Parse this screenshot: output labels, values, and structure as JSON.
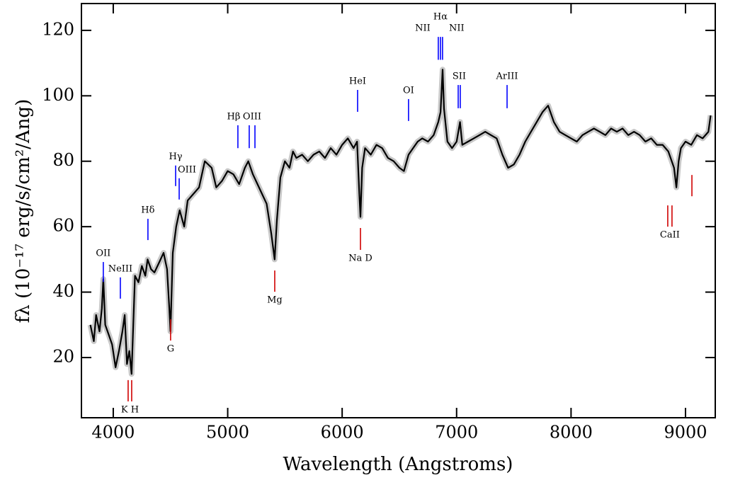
{
  "chart_data": {
    "type": "line",
    "xlabel": "Wavelength (Angstroms)",
    "ylabel": "fλ (10⁻¹⁷ erg/s/cm²/Ang)",
    "color": "#000000",
    "band_color": "#c8c8c8",
    "xlim": [
      3722,
      9260
    ],
    "ylim": [
      1.6,
      128.2
    ],
    "xticks": [
      4000,
      5000,
      6000,
      7000,
      8000,
      9000
    ],
    "yticks": [
      20,
      40,
      60,
      80,
      100,
      120
    ],
    "x": [
      3800,
      3830,
      3850,
      3880,
      3900,
      3913,
      3930,
      3960,
      3990,
      4020,
      4050,
      4080,
      4100,
      4120,
      4140,
      4160,
      4175,
      4190,
      4220,
      4250,
      4280,
      4300,
      4330,
      4360,
      4400,
      4440,
      4470,
      4490,
      4500,
      4520,
      4550,
      4580,
      4620,
      4650,
      4700,
      4750,
      4800,
      4860,
      4900,
      4950,
      5000,
      5050,
      5100,
      5150,
      5180,
      5220,
      5260,
      5300,
      5340,
      5380,
      5410,
      5430,
      5460,
      5500,
      5540,
      5570,
      5600,
      5650,
      5700,
      5750,
      5800,
      5850,
      5900,
      5950,
      6000,
      6050,
      6100,
      6130,
      6150,
      6160,
      6175,
      6200,
      6250,
      6300,
      6350,
      6400,
      6450,
      6500,
      6540,
      6580,
      6620,
      6660,
      6700,
      6750,
      6800,
      6840,
      6860,
      6878,
      6890,
      6920,
      6960,
      7000,
      7030,
      7050,
      7100,
      7150,
      7200,
      7250,
      7300,
      7350,
      7400,
      7450,
      7500,
      7550,
      7600,
      7650,
      7700,
      7750,
      7800,
      7850,
      7900,
      7950,
      8000,
      8050,
      8100,
      8150,
      8200,
      8250,
      8300,
      8350,
      8400,
      8450,
      8500,
      8550,
      8600,
      8650,
      8700,
      8750,
      8800,
      8850,
      8900,
      8920,
      8940,
      8960,
      9000,
      9050,
      9100,
      9150,
      9200,
      9220
    ],
    "values": [
      30,
      25,
      33,
      28,
      35,
      44,
      30,
      27,
      24,
      17,
      22,
      28,
      33,
      18,
      22,
      15,
      30,
      45,
      43,
      48,
      45,
      50,
      47,
      46,
      49,
      52,
      47,
      35,
      28,
      52,
      60,
      65,
      60,
      68,
      70,
      72,
      80,
      78,
      72,
      74,
      77,
      76,
      73,
      78,
      80,
      76,
      73,
      70,
      67,
      58,
      50,
      62,
      75,
      80,
      78,
      83,
      81,
      82,
      80,
      82,
      83,
      81,
      84,
      82,
      85,
      87,
      84,
      86,
      70,
      63,
      78,
      84,
      82,
      85,
      84,
      81,
      80,
      78,
      77,
      82,
      84,
      86,
      87,
      86,
      88,
      92,
      95,
      108,
      96,
      86,
      84,
      86,
      92,
      85,
      86,
      87,
      88,
      89,
      88,
      87,
      82,
      78,
      79,
      82,
      86,
      89,
      92,
      95,
      97,
      92,
      89,
      88,
      87,
      86,
      88,
      89,
      90,
      89,
      88,
      90,
      89,
      90,
      88,
      89,
      88,
      86,
      87,
      85,
      85,
      83,
      78,
      72,
      80,
      84,
      86,
      85,
      88,
      87,
      89,
      94
    ],
    "annotations": [
      {
        "label": "OII",
        "x": [
          3913
        ],
        "y": [
          49.2,
          43.1
        ],
        "color": "#0000ff"
      },
      {
        "label": "NeIII",
        "x": [
          4062
        ],
        "y": [
          44.5,
          38.0
        ],
        "color": "#0000ff"
      },
      {
        "label": "Hδ",
        "x": [
          4303
        ],
        "y": [
          62.4,
          55.9
        ],
        "color": "#0000ff"
      },
      {
        "label": "Hγ",
        "x": [
          4545
        ],
        "y": [
          78.7,
          72.4
        ],
        "color": "#0000ff"
      },
      {
        "label": "OIII",
        "x": [
          4576
        ],
        "y": [
          74.8,
          68.3
        ],
        "color": "#0000ff"
      },
      {
        "label": "Hβ",
        "x": [
          5089
        ],
        "y": [
          91.0,
          84.0
        ],
        "color": "#0000ff"
      },
      {
        "label": "OIII",
        "x": [
          5188,
          5238
        ],
        "y": [
          91.0,
          84.0
        ],
        "color": "#0000ff"
      },
      {
        "label": "HeI",
        "x": [
          6135
        ],
        "y": [
          101.8,
          95.1
        ],
        "color": "#0000ff"
      },
      {
        "label": "OI",
        "x": [
          6580
        ],
        "y": [
          99.0,
          92.3
        ],
        "color": "#0000ff"
      },
      {
        "label": "NII",
        "x": [
          6840
        ],
        "y": [
          118.0,
          111.0
        ],
        "color": "#0000ff"
      },
      {
        "label": "Hα",
        "x": [
          6859
        ],
        "y": [
          118.0,
          111.0
        ],
        "color": "#0000ff"
      },
      {
        "label": "NII",
        "x": [
          6877
        ],
        "y": [
          118.0,
          111.0
        ],
        "color": "#0000ff"
      },
      {
        "label": "SII",
        "x": [
          7014,
          7032
        ],
        "y": [
          103.3,
          96.2
        ],
        "color": "#0000ff"
      },
      {
        "label": "ArIII",
        "x": [
          7441
        ],
        "y": [
          103.3,
          96.2
        ],
        "color": "#0000ff"
      },
      {
        "label": "K H",
        "x": [
          4130,
          4161
        ],
        "y": [
          13.1,
          6.6
        ],
        "color": "#d00000"
      },
      {
        "label": "G",
        "x": [
          4501
        ],
        "y": [
          31.7,
          25.2
        ],
        "color": "#d00000"
      },
      {
        "label": "Mg",
        "x": [
          5411
        ],
        "y": [
          46.6,
          40.1
        ],
        "color": "#d00000"
      },
      {
        "label": "Na D",
        "x": [
          6160
        ],
        "y": [
          59.6,
          52.9
        ],
        "color": "#d00000"
      },
      {
        "label": "CaII",
        "x": [
          8845,
          8882
        ],
        "y": [
          66.5,
          60.0
        ],
        "color": "#d00000"
      },
      {
        "x": [
          9056
        ],
        "y": [
          75.8,
          69.3
        ],
        "color": "#d00000"
      }
    ]
  }
}
